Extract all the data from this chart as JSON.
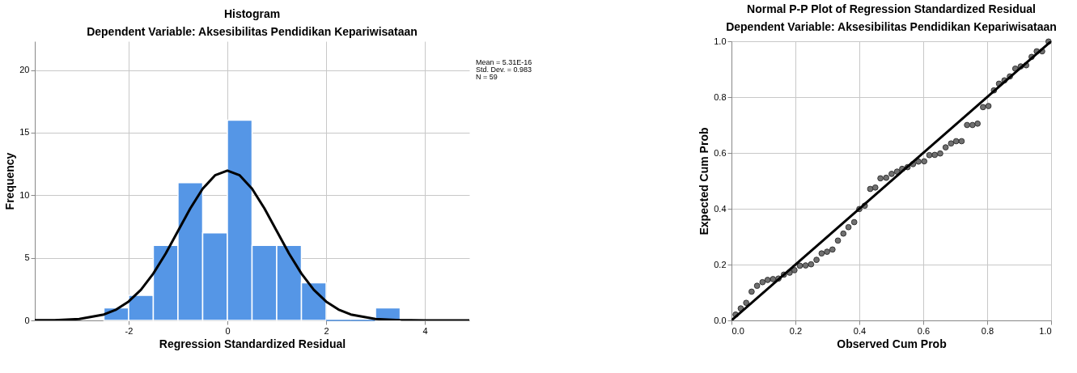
{
  "chart_data": [
    {
      "type": "histogram",
      "title": "Histogram",
      "subtitle": "Dependent Variable: Aksesibilitas Pendidikan Kepariwisataan",
      "xlabel": "Regression Standardized Residual",
      "ylabel": "Frequency",
      "bins": [
        -2.5,
        -2,
        -1.5,
        -1,
        -0.5,
        0,
        0.5,
        1,
        1.5,
        2,
        2.5,
        3,
        3.5
      ],
      "values": [
        1,
        2,
        6,
        11,
        7,
        16,
        6,
        6,
        3,
        0,
        0,
        1
      ],
      "color": "#5596e6",
      "series": [
        {
          "type": "line",
          "color": "#000000",
          "x": [
            -3.9,
            -3.5,
            -3,
            -2.5,
            -2.25,
            -2,
            -1.75,
            -1.5,
            -1.25,
            -1,
            -0.75,
            -0.5,
            -0.25,
            0,
            0.25,
            0.5,
            0.75,
            1,
            1.25,
            1.5,
            1.75,
            2,
            2.25,
            2.5,
            3,
            3.5,
            4,
            4.5,
            4.9
          ],
          "values": [
            0.01,
            0.02,
            0.11,
            0.47,
            0.87,
            1.51,
            2.45,
            3.74,
            5.33,
            7.14,
            8.95,
            10.52,
            11.59,
            11.97,
            11.59,
            10.52,
            8.95,
            7.14,
            5.33,
            3.74,
            2.45,
            1.51,
            0.87,
            0.47,
            0.11,
            0.02,
            0,
            0,
            0
          ]
        }
      ],
      "xlim": [
        -3.9,
        4.9
      ],
      "xticks": [
        -2,
        0,
        2,
        4
      ],
      "ylim": [
        0,
        22.3
      ],
      "yticks": [
        0,
        5,
        10,
        15,
        20
      ],
      "grid": true,
      "annotations": [
        "Mean = 5.31E-16",
        "Std. Dev. = 0.983",
        "N = 59"
      ]
    },
    {
      "type": "scatter",
      "title": "Normal P-P Plot of Regression Standardized Residual",
      "subtitle": "Dependent Variable: Aksesibilitas Pendidikan Kepariwisataan",
      "xlabel": "Observed Cum Prob",
      "ylabel": "Expected Cum Prob",
      "series": [
        {
          "type": "scatter",
          "color": "#707070",
          "marker": "circle",
          "x": [
            0.013,
            0.029,
            0.046,
            0.063,
            0.08,
            0.097,
            0.113,
            0.13,
            0.147,
            0.164,
            0.182,
            0.197,
            0.214,
            0.232,
            0.249,
            0.266,
            0.282,
            0.299,
            0.316,
            0.333,
            0.35,
            0.366,
            0.384,
            0.4,
            0.417,
            0.434,
            0.45,
            0.466,
            0.484,
            0.501,
            0.518,
            0.534,
            0.551,
            0.568,
            0.585,
            0.603,
            0.619,
            0.636,
            0.653,
            0.67,
            0.687,
            0.703,
            0.72,
            0.737,
            0.754,
            0.77,
            0.787,
            0.804,
            0.821,
            0.837,
            0.854,
            0.871,
            0.888,
            0.905,
            0.922,
            0.939,
            0.955,
            0.972,
            0.992
          ],
          "values": [
            0.021,
            0.043,
            0.063,
            0.103,
            0.124,
            0.137,
            0.145,
            0.148,
            0.15,
            0.164,
            0.171,
            0.18,
            0.196,
            0.197,
            0.201,
            0.217,
            0.24,
            0.246,
            0.254,
            0.286,
            0.311,
            0.334,
            0.352,
            0.399,
            0.411,
            0.471,
            0.476,
            0.509,
            0.511,
            0.525,
            0.533,
            0.543,
            0.549,
            0.56,
            0.569,
            0.57,
            0.592,
            0.593,
            0.598,
            0.62,
            0.634,
            0.642,
            0.642,
            0.7,
            0.7,
            0.705,
            0.764,
            0.768,
            0.824,
            0.848,
            0.86,
            0.874,
            0.902,
            0.91,
            0.914,
            0.944,
            0.964,
            0.964,
            0.999
          ]
        },
        {
          "type": "line",
          "color": "#000000",
          "marker": "none",
          "x": [
            0,
            1
          ],
          "values": [
            0,
            1
          ]
        }
      ],
      "xlim": [
        0,
        1
      ],
      "ylim": [
        0,
        1
      ],
      "xticks": [
        {
          "value": 0,
          "label": "0.0"
        },
        {
          "value": 0.2,
          "label": "0.2"
        },
        {
          "value": 0.4,
          "label": "0.4"
        },
        {
          "value": 0.6,
          "label": "0.6"
        },
        {
          "value": 0.8,
          "label": "0.8"
        },
        {
          "value": 1,
          "label": "1.0"
        }
      ],
      "yticks": [
        {
          "value": 0,
          "label": "0.0"
        },
        {
          "value": 0.2,
          "label": "0.2"
        },
        {
          "value": 0.4,
          "label": "0.4"
        },
        {
          "value": 0.6,
          "label": "0.6"
        },
        {
          "value": 0.8,
          "label": "0.8"
        },
        {
          "value": 1,
          "label": "1.0"
        }
      ],
      "grid": true
    }
  ]
}
